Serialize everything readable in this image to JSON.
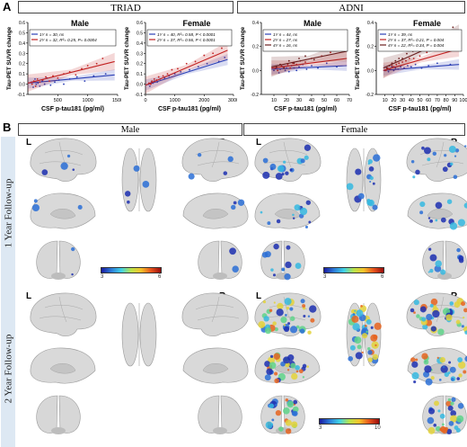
{
  "panel_a": {
    "letter": "A",
    "cohorts": [
      {
        "name": "TRIAD"
      },
      {
        "name": "ADNI"
      }
    ]
  },
  "panel_b": {
    "letter": "B",
    "sex_headers": [
      "Male",
      "Female"
    ],
    "row_labels": [
      "1 Year Follow-up",
      "2 Year Follow-up"
    ],
    "hemisphere_left": "L",
    "hemisphere_right": "R",
    "colorbars": [
      {
        "min": "3",
        "max": "6"
      },
      {
        "min": "3",
        "max": "6"
      },
      {
        "min": "3",
        "max": "10"
      }
    ]
  },
  "colors": {
    "blue": "#2b3fb5",
    "red": "#c22222",
    "darkred": "#6b1e1e",
    "side_label_bg": "#dde8f3"
  },
  "chart_data": [
    {
      "type": "scatter",
      "cohort": "TRIAD",
      "title": "Male",
      "xlabel": "CSF p-tau181 (pg/ml)",
      "ylabel": "Tau-PET SUVR change",
      "xlim": [
        0,
        1500
      ],
      "ylim": [
        -0.1,
        0.6
      ],
      "xticks": [
        "500",
        "1000",
        "1500"
      ],
      "yticks": [
        "-0.1",
        "0.0",
        "0.1",
        "0.2",
        "0.3",
        "0.4",
        "0.5",
        "0.6"
      ],
      "series": [
        {
          "name": "1Y",
          "legend": "1Y n = 30, ns",
          "color": "#2b3fb5",
          "fit": [
            [
              0,
              0.01
            ],
            [
              1450,
              0.09
            ]
          ],
          "x": [
            60,
            90,
            120,
            140,
            170,
            200,
            240,
            280,
            320,
            380,
            450,
            520,
            600,
            700,
            820,
            950,
            1100,
            1300
          ],
          "y": [
            0.02,
            -0.03,
            0.05,
            0.0,
            0.01,
            -0.02,
            0.03,
            0.0,
            0.06,
            -0.01,
            0.02,
            0.04,
            0.0,
            0.05,
            0.07,
            0.03,
            0.08,
            0.1
          ]
        },
        {
          "name": "2Y",
          "legend": "2Y n = 32, R²= 0.25, P= 0.0004",
          "color": "#c22222",
          "fit": [
            [
              0,
              0.01
            ],
            [
              1450,
              0.22
            ]
          ],
          "x": [
            70,
            100,
            130,
            160,
            200,
            250,
            300,
            360,
            420,
            500,
            600,
            700,
            800,
            900,
            1000,
            1150,
            1250,
            1400
          ],
          "y": [
            0.0,
            0.03,
            -0.02,
            0.05,
            0.02,
            0.04,
            0.07,
            0.03,
            0.08,
            0.06,
            0.1,
            0.12,
            0.09,
            0.15,
            0.18,
            0.2,
            0.25,
            0.45
          ]
        }
      ]
    },
    {
      "type": "scatter",
      "cohort": "TRIAD",
      "title": "Female",
      "xlabel": "CSF p-tau181 (pg/ml)",
      "ylabel": "Tau-PET SUVR change",
      "xlim": [
        0,
        3000
      ],
      "ylim": [
        -0.1,
        0.6
      ],
      "xticks": [
        "0",
        "1000",
        "2000",
        "3000"
      ],
      "yticks": [
        "-0.1",
        "0.0",
        "0.1",
        "0.2",
        "0.3",
        "0.4",
        "0.5",
        "0.6"
      ],
      "series": [
        {
          "name": "1Y",
          "legend": "1Y n = 40, R²= 0.58, P < 0.0001",
          "color": "#2b3fb5",
          "fit": [
            [
              0,
              -0.01
            ],
            [
              2800,
              0.24
            ]
          ],
          "x": [
            100,
            150,
            200,
            250,
            300,
            400,
            500,
            650,
            800,
            1000,
            1200,
            1500,
            1800,
            2100,
            2500,
            2700
          ],
          "y": [
            0.0,
            -0.02,
            0.02,
            0.01,
            0.03,
            0.02,
            0.05,
            0.06,
            0.08,
            0.1,
            0.12,
            0.14,
            0.17,
            0.2,
            0.22,
            0.26
          ]
        },
        {
          "name": "2Y",
          "legend": "2Y n = 37, R²= 0.56, P < 0.0001",
          "color": "#c22222",
          "fit": [
            [
              0,
              -0.01
            ],
            [
              2800,
              0.33
            ]
          ],
          "x": [
            120,
            180,
            220,
            300,
            380,
            450,
            600,
            750,
            900,
            1100,
            1400,
            1700,
            2000,
            2300,
            2600
          ],
          "y": [
            0.01,
            0.0,
            0.03,
            0.05,
            0.04,
            0.07,
            0.08,
            0.1,
            0.14,
            0.15,
            0.2,
            0.22,
            0.28,
            0.3,
            0.35
          ]
        }
      ]
    },
    {
      "type": "scatter",
      "cohort": "ADNI",
      "title": "Male",
      "xlabel": "CSF p-tau181 (pg/ml)",
      "ylabel": "Tau-PET SUVR change",
      "xlim": [
        0,
        70
      ],
      "ylim": [
        -0.2,
        0.4
      ],
      "xticks": [
        "10",
        "20",
        "30",
        "40",
        "50",
        "60",
        "70"
      ],
      "yticks": [
        "-0.2",
        "0.0",
        "0.2",
        "0.4"
      ],
      "series": [
        {
          "name": "1Y",
          "legend": "1Y n = 44, ns",
          "color": "#2b3fb5",
          "fit": [
            [
              8,
              0.01
            ],
            [
              68,
              0.04
            ]
          ],
          "x": [
            10,
            12,
            14,
            15,
            17,
            19,
            20,
            22,
            24,
            26,
            28,
            30,
            33,
            36,
            40,
            45,
            52,
            60
          ],
          "y": [
            0.0,
            0.02,
            -0.02,
            0.01,
            0.03,
            0.0,
            0.02,
            -0.01,
            0.04,
            0.02,
            0.0,
            0.03,
            0.05,
            0.01,
            0.04,
            0.02,
            0.06,
            0.03
          ]
        },
        {
          "name": "2Y",
          "legend": "2Y n = 27, ns",
          "color": "#c22222",
          "fit": [
            [
              8,
              0.02
            ],
            [
              68,
              0.1
            ]
          ],
          "x": [
            11,
            13,
            16,
            18,
            21,
            23,
            25,
            28,
            31,
            35,
            40,
            48,
            55
          ],
          "y": [
            0.02,
            0.0,
            0.04,
            0.03,
            0.05,
            0.02,
            0.06,
            0.05,
            0.08,
            0.07,
            0.1,
            0.12,
            0.15
          ]
        },
        {
          "name": "4Y",
          "legend": "4Y n = 16, ns",
          "color": "#6b1e1e",
          "fit": [
            [
              8,
              0.03
            ],
            [
              68,
              0.16
            ]
          ],
          "x": [
            12,
            15,
            18,
            22,
            26,
            30,
            35,
            42,
            50,
            58
          ],
          "y": [
            0.03,
            0.05,
            0.02,
            0.08,
            0.06,
            0.1,
            0.12,
            0.09,
            0.18,
            0.2
          ]
        }
      ]
    },
    {
      "type": "scatter",
      "cohort": "ADNI",
      "title": "Female",
      "xlabel": "CSF p-tau181 (pg/ml)",
      "ylabel": "Tau-PET SUVR change",
      "xlim": [
        0,
        100
      ],
      "ylim": [
        -0.2,
        0.4
      ],
      "xticks": [
        "10",
        "20",
        "30",
        "40",
        "50",
        "60",
        "70",
        "80",
        "90",
        "100"
      ],
      "yticks": [
        "-0.2",
        "0.0",
        "0.2",
        "0.4"
      ],
      "series": [
        {
          "name": "1Y",
          "legend": "1Y n = 39, ns",
          "color": "#2b3fb5",
          "fit": [
            [
              8,
              0.0
            ],
            [
              95,
              0.05
            ]
          ],
          "x": [
            10,
            12,
            14,
            16,
            18,
            20,
            22,
            25,
            28,
            32,
            36,
            40,
            45,
            52,
            60,
            70,
            85
          ],
          "y": [
            0.0,
            0.02,
            -0.01,
            0.01,
            0.03,
            0.0,
            0.02,
            0.01,
            0.03,
            0.02,
            0.04,
            0.03,
            0.05,
            0.02,
            0.04,
            0.06,
            0.05
          ]
        },
        {
          "name": "2Y",
          "legend": "2Y n = 37, R²= 0.21, P = 0.004",
          "color": "#c22222",
          "fit": [
            [
              8,
              0.0
            ],
            [
              95,
              0.18
            ]
          ],
          "x": [
            11,
            13,
            15,
            18,
            20,
            23,
            26,
            30,
            34,
            38,
            43,
            50,
            58,
            66,
            75,
            90
          ],
          "y": [
            0.0,
            0.02,
            0.01,
            0.04,
            0.03,
            0.05,
            0.06,
            0.07,
            0.08,
            0.1,
            0.1,
            0.12,
            0.15,
            0.17,
            0.2,
            0.22
          ]
        },
        {
          "name": "4Y",
          "legend": "4Y n = 22, R²= 0.34, P = 0.004",
          "color": "#6b1e1e",
          "fit": [
            [
              8,
              0.02
            ],
            [
              95,
              0.3
            ]
          ],
          "x": [
            12,
            15,
            18,
            22,
            26,
            30,
            35,
            42,
            50,
            60,
            72,
            88
          ],
          "y": [
            0.02,
            0.04,
            0.06,
            0.08,
            0.1,
            0.1,
            0.14,
            0.16,
            0.2,
            0.24,
            0.3,
            0.36
          ]
        }
      ]
    }
  ]
}
